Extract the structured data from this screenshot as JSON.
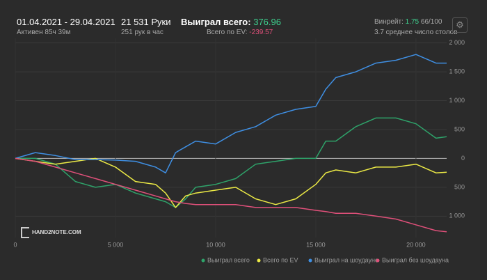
{
  "header": {
    "date_range": "01.04.2021 - 29.04.2021",
    "active": "Активен 85ч 39м",
    "hands": "21 531 Руки",
    "hands_per_hour": "251 рук в час",
    "won_label": "Выиграл всего:",
    "won_value": "376.96",
    "ev_label": "Всего по EV:",
    "ev_value": "-239.57",
    "winrate_label": "Винрейт:",
    "winrate_value": "1.75",
    "winrate_unit": "66/100",
    "tables": "3.7 среднее число столов",
    "logo": "HAND2NOTE.COM"
  },
  "chart_data": {
    "type": "line",
    "x": [
      0,
      1000,
      2000,
      3000,
      4000,
      5000,
      6000,
      7000,
      7500,
      8000,
      8500,
      9000,
      10000,
      11000,
      12000,
      13000,
      14000,
      15000,
      15500,
      16000,
      17000,
      18000,
      19000,
      20000,
      21000,
      21531
    ],
    "series": [
      {
        "name": "Выиграл всего",
        "color": "#2ea36a",
        "values": [
          0,
          0,
          -100,
          -400,
          -500,
          -450,
          -600,
          -700,
          -750,
          -850,
          -700,
          -500,
          -450,
          -350,
          -100,
          -50,
          0,
          0,
          300,
          300,
          550,
          700,
          700,
          600,
          350,
          376.96
        ]
      },
      {
        "name": "Всего по EV",
        "color": "#ecea45",
        "values": [
          0,
          -50,
          -100,
          -50,
          0,
          -150,
          -400,
          -450,
          -600,
          -850,
          -650,
          -600,
          -550,
          -500,
          -700,
          -800,
          -700,
          -450,
          -250,
          -200,
          -250,
          -150,
          -150,
          -100,
          -250,
          -239.57
        ]
      },
      {
        "name": "Выиграл на шоудауне",
        "color": "#3f8fe3",
        "values": [
          0,
          100,
          50,
          -20,
          -20,
          -30,
          -50,
          -150,
          -250,
          100,
          200,
          300,
          250,
          450,
          550,
          750,
          850,
          900,
          1200,
          1400,
          1500,
          1650,
          1700,
          1800,
          1650,
          1650
        ]
      },
      {
        "name": "Выиграл без шоудауна",
        "color": "#e0507a",
        "values": [
          0,
          -50,
          -150,
          -250,
          -350,
          -450,
          -550,
          -650,
          -700,
          -750,
          -780,
          -800,
          -800,
          -800,
          -850,
          -850,
          -850,
          -900,
          -920,
          -950,
          -950,
          -1000,
          -1050,
          -1150,
          -1250,
          -1270
        ]
      }
    ],
    "xlim": [
      0,
      21531
    ],
    "xticks": [
      0,
      {
        "value": 5000,
        "label": "5 000"
      },
      {
        "value": 10000,
        "label": "10 000"
      },
      {
        "value": 15000,
        "label": "15 000"
      },
      {
        "value": 20000,
        "label": "20 000"
      }
    ],
    "ylim": [
      -1370,
      2080
    ],
    "yticks": [
      {
        "value": -1000,
        "label": "1 000"
      },
      {
        "value": -500,
        "label": "500"
      },
      0,
      500,
      {
        "value": 1000,
        "label": "1 000"
      },
      {
        "value": 1500,
        "label": "1 500"
      },
      {
        "value": 2000,
        "label": "2 000"
      }
    ],
    "grid": true
  }
}
